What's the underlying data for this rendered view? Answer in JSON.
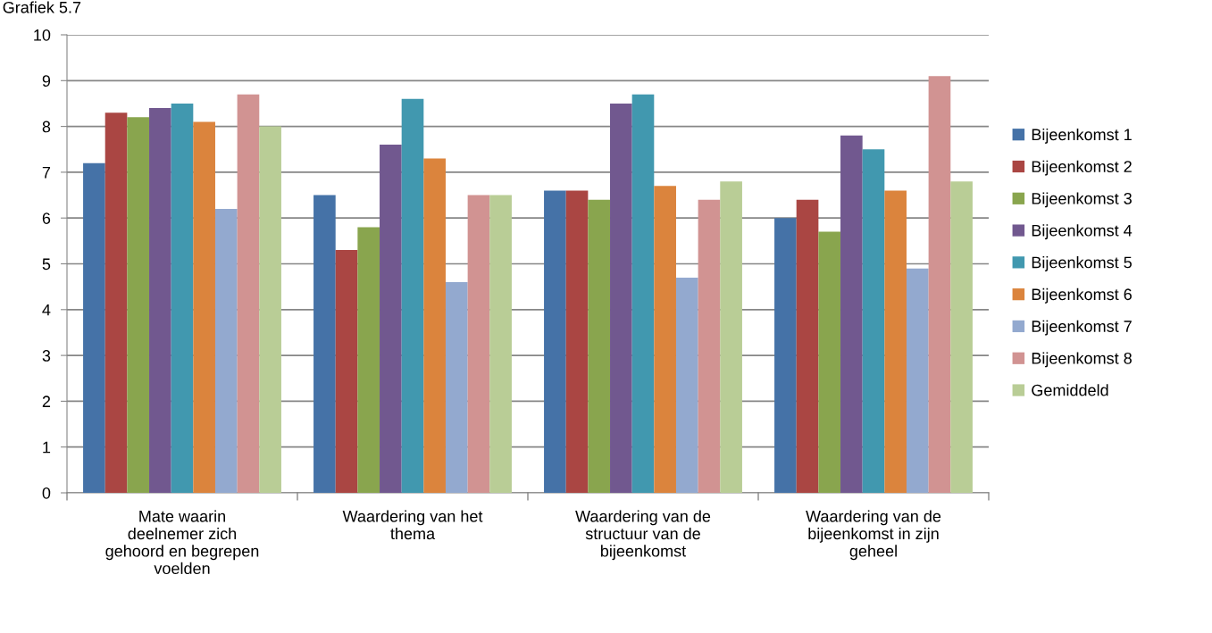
{
  "chart_data": {
    "type": "bar",
    "title": "Grafiek 5.7",
    "categories": [
      "Mate waarin\ndeelnemer zich\ngehoord en begrepen\nvoelden",
      "Waardering van het\nthema",
      "Waardering van de\nstructuur van de\nbijeenkomst",
      "Waardering van de\nbijeenkomst in zijn\ngeheel"
    ],
    "series": [
      {
        "name": "Bijeenkomst 1",
        "color": "#4572a7",
        "values": [
          7.2,
          6.5,
          6.6,
          6.0
        ]
      },
      {
        "name": "Bijeenkomst 2",
        "color": "#aa4643",
        "values": [
          8.3,
          5.3,
          6.6,
          6.4
        ]
      },
      {
        "name": "Bijeenkomst 3",
        "color": "#89a54e",
        "values": [
          8.2,
          5.8,
          6.4,
          5.7
        ]
      },
      {
        "name": "Bijeenkomst 4",
        "color": "#71588f",
        "values": [
          8.4,
          7.6,
          8.5,
          7.8
        ]
      },
      {
        "name": "Bijeenkomst 5",
        "color": "#4198af",
        "values": [
          8.5,
          8.6,
          8.7,
          7.5
        ]
      },
      {
        "name": "Bijeenkomst 6",
        "color": "#db843d",
        "values": [
          8.1,
          7.3,
          6.7,
          6.6
        ]
      },
      {
        "name": "Bijeenkomst 7",
        "color": "#93a9cf",
        "values": [
          6.2,
          4.6,
          4.7,
          4.9
        ]
      },
      {
        "name": "Bijeenkomst 8",
        "color": "#d19392",
        "values": [
          8.7,
          6.5,
          6.4,
          9.1
        ]
      },
      {
        "name": "Gemiddeld",
        "color": "#b9cd96",
        "values": [
          8.0,
          6.5,
          6.8,
          6.8
        ]
      }
    ],
    "ylim": [
      0,
      10
    ],
    "yticks": [
      0,
      1,
      2,
      3,
      4,
      5,
      6,
      7,
      8,
      9,
      10
    ],
    "grid": "y",
    "legend": "right"
  }
}
